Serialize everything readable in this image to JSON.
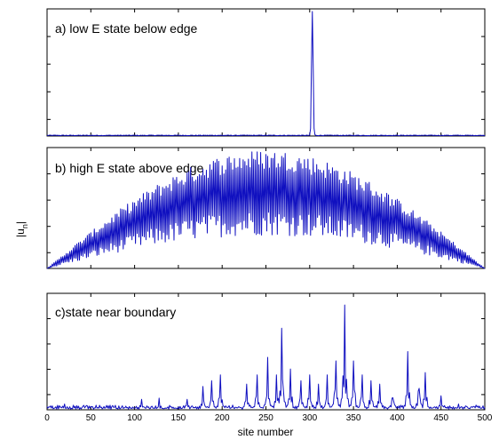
{
  "chart_data": [
    {
      "type": "line",
      "title": "a) low E state below edge",
      "xlabel": "",
      "ylabel": "",
      "xlim": [
        0,
        500
      ],
      "ylim": [
        0,
        1
      ],
      "grid": false,
      "line_color": "#1010c0",
      "peaks": [
        {
          "x": 303,
          "y": 0.98
        }
      ],
      "baseline": 0.005
    },
    {
      "type": "line",
      "title": "b) high E state above edge",
      "xlabel": "",
      "ylabel": "",
      "xlim": [
        0,
        500
      ],
      "ylim": [
        0,
        1
      ],
      "grid": false,
      "line_color": "#1010c0",
      "envelope": {
        "shape": "sine-arch",
        "x_start": 0,
        "x_end": 500,
        "peak": 0.98,
        "mean_fraction": 0.62
      }
    },
    {
      "type": "line",
      "title": "c)state near boundary",
      "xlabel": "site number",
      "ylabel": "",
      "xlim": [
        0,
        500
      ],
      "ylim": [
        0,
        1
      ],
      "grid": false,
      "line_color": "#1010c0",
      "xticks": [
        0,
        50,
        100,
        150,
        200,
        250,
        300,
        350,
        400,
        450,
        500
      ],
      "peaks": [
        {
          "x": 20,
          "y": 0.05
        },
        {
          "x": 45,
          "y": 0.06
        },
        {
          "x": 75,
          "y": 0.05
        },
        {
          "x": 108,
          "y": 0.09
        },
        {
          "x": 128,
          "y": 0.1
        },
        {
          "x": 160,
          "y": 0.09
        },
        {
          "x": 178,
          "y": 0.2
        },
        {
          "x": 188,
          "y": 0.25
        },
        {
          "x": 198,
          "y": 0.3
        },
        {
          "x": 228,
          "y": 0.22
        },
        {
          "x": 240,
          "y": 0.3
        },
        {
          "x": 252,
          "y": 0.45
        },
        {
          "x": 262,
          "y": 0.3
        },
        {
          "x": 268,
          "y": 0.7
        },
        {
          "x": 278,
          "y": 0.35
        },
        {
          "x": 290,
          "y": 0.25
        },
        {
          "x": 300,
          "y": 0.3
        },
        {
          "x": 310,
          "y": 0.22
        },
        {
          "x": 320,
          "y": 0.3
        },
        {
          "x": 330,
          "y": 0.42
        },
        {
          "x": 340,
          "y": 0.9
        },
        {
          "x": 350,
          "y": 0.42
        },
        {
          "x": 360,
          "y": 0.3
        },
        {
          "x": 370,
          "y": 0.25
        },
        {
          "x": 380,
          "y": 0.22
        },
        {
          "x": 395,
          "y": 0.18
        },
        {
          "x": 412,
          "y": 0.5
        },
        {
          "x": 425,
          "y": 0.28
        },
        {
          "x": 432,
          "y": 0.32
        },
        {
          "x": 450,
          "y": 0.12
        },
        {
          "x": 470,
          "y": 0.05
        },
        {
          "x": 490,
          "y": 0.04
        }
      ]
    }
  ],
  "figure": {
    "shared_ylabel": "|u_n|",
    "shared_ylabel_main": "|u",
    "shared_ylabel_sub": "n",
    "shared_ylabel_end": "|"
  }
}
